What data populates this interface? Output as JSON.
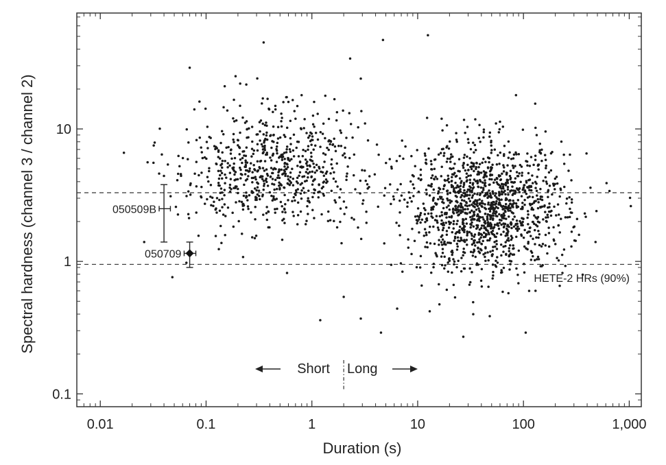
{
  "chart_data": {
    "type": "scatter",
    "title": "",
    "xlabel": "Duration (s)",
    "ylabel": "Spectral hardness (channel 3 / channel 2)",
    "x_scale": "log",
    "y_scale": "log",
    "xlim": [
      0.006,
      1300
    ],
    "ylim": [
      0.08,
      75
    ],
    "x_ticks": [
      {
        "value": 0.01,
        "label": "0.01"
      },
      {
        "value": 0.1,
        "label": "0.1"
      },
      {
        "value": 1,
        "label": "1"
      },
      {
        "value": 10,
        "label": "10"
      },
      {
        "value": 100,
        "label": "100"
      },
      {
        "value": 1000,
        "label": "1,000"
      }
    ],
    "y_ticks": [
      {
        "value": 0.1,
        "label": "0.1"
      },
      {
        "value": 1,
        "label": "1"
      },
      {
        "value": 10,
        "label": "10"
      }
    ],
    "grid": false,
    "reference_lines": [
      {
        "axis": "y",
        "value": 3.3,
        "style": "dashed"
      },
      {
        "axis": "y",
        "value": 0.95,
        "style": "dashed",
        "label": "HETE-2 HRs (90%)"
      },
      {
        "axis": "x",
        "value": 2,
        "style": "dash-dot"
      }
    ],
    "region_labels": [
      {
        "text": "Short",
        "arrow": "left"
      },
      {
        "text": "Long",
        "arrow": "right"
      }
    ],
    "highlighted": [
      {
        "name": "050509B",
        "x": 0.04,
        "y": 2.5,
        "x_err": [
          0.036,
          0.046
        ],
        "y_err": [
          1.4,
          3.8
        ],
        "marker": "none"
      },
      {
        "name": "050709",
        "x": 0.07,
        "y": 1.15,
        "x_err": [
          0.062,
          0.08
        ],
        "y_err": [
          0.9,
          1.4
        ],
        "marker": "filled-diamond"
      }
    ],
    "series": [
      {
        "marker": "dot",
        "clusters": [
          {
            "x_center": 0.45,
            "y_center": 5.0,
            "x_spread_dex": 0.42,
            "y_spread_dex": 0.23,
            "count": 720
          },
          {
            "x_center": 45,
            "y_center": 2.5,
            "x_spread_dex": 0.38,
            "y_spread_dex": 0.24,
            "count": 1330
          }
        ],
        "points": [
          {
            "x": 0.07,
            "y": 29
          },
          {
            "x": 0.35,
            "y": 45
          },
          {
            "x": 4.7,
            "y": 47
          },
          {
            "x": 12.5,
            "y": 51
          },
          {
            "x": 2.3,
            "y": 34
          },
          {
            "x": 2.9,
            "y": 24
          },
          {
            "x": 0.19,
            "y": 25
          },
          {
            "x": 0.21,
            "y": 22
          },
          {
            "x": 0.15,
            "y": 21
          },
          {
            "x": 85,
            "y": 18
          },
          {
            "x": 0.032,
            "y": 7.5
          },
          {
            "x": 0.028,
            "y": 5.6
          },
          {
            "x": 0.036,
            "y": 4.6
          },
          {
            "x": 0.048,
            "y": 0.76
          },
          {
            "x": 0.026,
            "y": 1.4
          },
          {
            "x": 1.2,
            "y": 0.36
          },
          {
            "x": 2.9,
            "y": 0.37
          },
          {
            "x": 4.5,
            "y": 0.29
          },
          {
            "x": 27,
            "y": 0.27
          },
          {
            "x": 105,
            "y": 0.29
          },
          {
            "x": 13,
            "y": 0.42
          },
          {
            "x": 6.4,
            "y": 0.44
          },
          {
            "x": 2.0,
            "y": 0.54
          },
          {
            "x": 130,
            "y": 0.6
          },
          {
            "x": 650,
            "y": 3.4
          },
          {
            "x": 610,
            "y": 3.9
          },
          {
            "x": 430,
            "y": 3.6
          },
          {
            "x": 380,
            "y": 2.3
          },
          {
            "x": 275,
            "y": 6.4
          },
          {
            "x": 480,
            "y": 1.4
          },
          {
            "x": 0.8,
            "y": 18
          },
          {
            "x": 1.05,
            "y": 16
          },
          {
            "x": 0.6,
            "y": 16
          },
          {
            "x": 130,
            "y": 10.2
          },
          {
            "x": 55,
            "y": 11
          }
        ]
      }
    ]
  }
}
